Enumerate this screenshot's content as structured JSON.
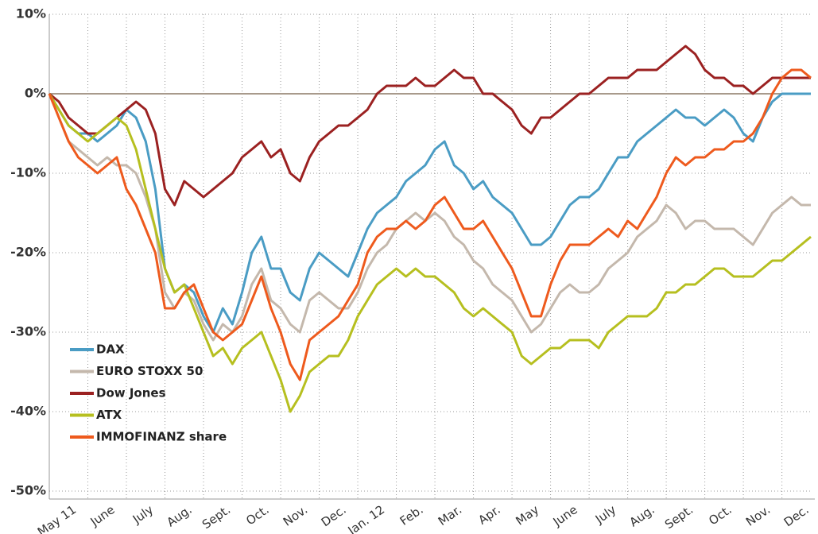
{
  "chart_data": {
    "type": "line",
    "categories": [
      null,
      null,
      "May 11",
      null,
      null,
      null,
      "June",
      null,
      null,
      null,
      "July",
      null,
      null,
      null,
      "Aug.",
      null,
      null,
      null,
      "Sept.",
      null,
      null,
      null,
      "Oct.",
      null,
      null,
      null,
      "Nov.",
      null,
      null,
      null,
      "Dec.",
      null,
      null,
      null,
      "Jan. 12",
      null,
      null,
      null,
      "Feb.",
      null,
      null,
      null,
      "Mar.",
      null,
      null,
      null,
      "Apr.",
      null,
      null,
      null,
      "May",
      null,
      null,
      null,
      "June",
      null,
      null,
      null,
      "July",
      null,
      null,
      null,
      "Aug.",
      null,
      null,
      null,
      "Sept.",
      null,
      null,
      null,
      "Oct.",
      null,
      null,
      null,
      "Nov.",
      null,
      null,
      null,
      "Dec.",
      null
    ],
    "series": [
      {
        "name": "DAX",
        "color": "#4a9cc4",
        "values": [
          0,
          -2,
          -4,
          -5,
          -5,
          -6,
          -5,
          -4,
          -2,
          -3,
          -6,
          -12,
          -22,
          -25,
          -24,
          -25,
          -28,
          -30,
          -27,
          -29,
          -25,
          -20,
          -18,
          -22,
          -22,
          -25,
          -26,
          -22,
          -20,
          -21,
          -22,
          -23,
          -20,
          -17,
          -15,
          -14,
          -13,
          -11,
          -10,
          -9,
          -7,
          -6,
          -9,
          -10,
          -12,
          -11,
          -13,
          -14,
          -15,
          -17,
          -19,
          -19,
          -18,
          -16,
          -14,
          -13,
          -13,
          -12,
          -10,
          -8,
          -8,
          -6,
          -5,
          -4,
          -3,
          -2,
          -3,
          -3,
          -4,
          -3,
          -2,
          -3,
          -5,
          -6,
          -3,
          -1,
          0,
          0,
          0,
          0
        ]
      },
      {
        "name": "EURO STOXX 50",
        "color": "#c4b8ac",
        "values": [
          0,
          -3,
          -6,
          -7,
          -8,
          -9,
          -8,
          -9,
          -9,
          -10,
          -13,
          -17,
          -25,
          -27,
          -25,
          -26,
          -29,
          -31,
          -29,
          -30,
          -28,
          -24,
          -22,
          -26,
          -27,
          -29,
          -30,
          -26,
          -25,
          -26,
          -27,
          -27,
          -25,
          -22,
          -20,
          -19,
          -17,
          -16,
          -15,
          -16,
          -15,
          -16,
          -18,
          -19,
          -21,
          -22,
          -24,
          -25,
          -26,
          -28,
          -30,
          -29,
          -27,
          -25,
          -24,
          -25,
          -25,
          -24,
          -22,
          -21,
          -20,
          -18,
          -17,
          -16,
          -14,
          -15,
          -17,
          -16,
          -16,
          -17,
          -17,
          -17,
          -18,
          -19,
          -17,
          -15,
          -14,
          -13,
          -14,
          -14
        ]
      },
      {
        "name": "Dow Jones",
        "color": "#9b2121",
        "values": [
          0,
          -1,
          -3,
          -4,
          -5,
          -5,
          -4,
          -3,
          -2,
          -1,
          -2,
          -5,
          -12,
          -14,
          -11,
          -12,
          -13,
          -12,
          -11,
          -10,
          -8,
          -7,
          -6,
          -8,
          -7,
          -10,
          -11,
          -8,
          -6,
          -5,
          -4,
          -4,
          -3,
          -2,
          0,
          1,
          1,
          1,
          2,
          1,
          1,
          2,
          3,
          2,
          2,
          0,
          0,
          -1,
          -2,
          -4,
          -5,
          -3,
          -3,
          -2,
          -1,
          0,
          0,
          1,
          2,
          2,
          2,
          3,
          3,
          3,
          4,
          5,
          6,
          5,
          3,
          2,
          2,
          1,
          1,
          0,
          1,
          2,
          2,
          2,
          2,
          2
        ]
      },
      {
        "name": "ATX",
        "color": "#b6bf1f",
        "values": [
          0,
          -2,
          -4,
          -5,
          -6,
          -5,
          -4,
          -3,
          -4,
          -7,
          -12,
          -17,
          -22,
          -25,
          -24,
          -27,
          -30,
          -33,
          -32,
          -34,
          -32,
          -31,
          -30,
          -33,
          -36,
          -40,
          -38,
          -35,
          -34,
          -33,
          -33,
          -31,
          -28,
          -26,
          -24,
          -23,
          -22,
          -23,
          -22,
          -23,
          -23,
          -24,
          -25,
          -27,
          -28,
          -27,
          -28,
          -29,
          -30,
          -33,
          -34,
          -33,
          -32,
          -32,
          -31,
          -31,
          -31,
          -32,
          -30,
          -29,
          -28,
          -28,
          -28,
          -27,
          -25,
          -25,
          -24,
          -24,
          -23,
          -22,
          -22,
          -23,
          -23,
          -23,
          -22,
          -21,
          -21,
          -20,
          -19,
          -18
        ]
      },
      {
        "name": "IMMOFINANZ share",
        "color": "#ee5a1d",
        "values": [
          0,
          -3,
          -6,
          -8,
          -9,
          -10,
          -9,
          -8,
          -12,
          -14,
          -17,
          -20,
          -27,
          -27,
          -25,
          -24,
          -27,
          -30,
          -31,
          -30,
          -29,
          -26,
          -23,
          -27,
          -30,
          -34,
          -36,
          -31,
          -30,
          -29,
          -28,
          -26,
          -24,
          -20,
          -18,
          -17,
          -17,
          -16,
          -17,
          -16,
          -14,
          -13,
          -15,
          -17,
          -17,
          -16,
          -18,
          -20,
          -22,
          -25,
          -28,
          -28,
          -24,
          -21,
          -19,
          -19,
          -19,
          -18,
          -17,
          -18,
          -16,
          -17,
          -15,
          -13,
          -10,
          -8,
          -9,
          -8,
          -8,
          -7,
          -7,
          -6,
          -6,
          -5,
          -3,
          0,
          2,
          3,
          3,
          2
        ]
      }
    ],
    "ylim": [
      -51,
      10
    ],
    "yticks": [
      {
        "value": 10,
        "label": "10%"
      },
      {
        "value": 0,
        "label": "0%"
      },
      {
        "value": -10,
        "label": "-10%"
      },
      {
        "value": -20,
        "label": "-20%"
      },
      {
        "value": -30,
        "label": "-30%"
      },
      {
        "value": -40,
        "label": "-40%"
      },
      {
        "value": -50,
        "label": "-50%"
      }
    ],
    "grid": true,
    "legend": "lower-left"
  }
}
